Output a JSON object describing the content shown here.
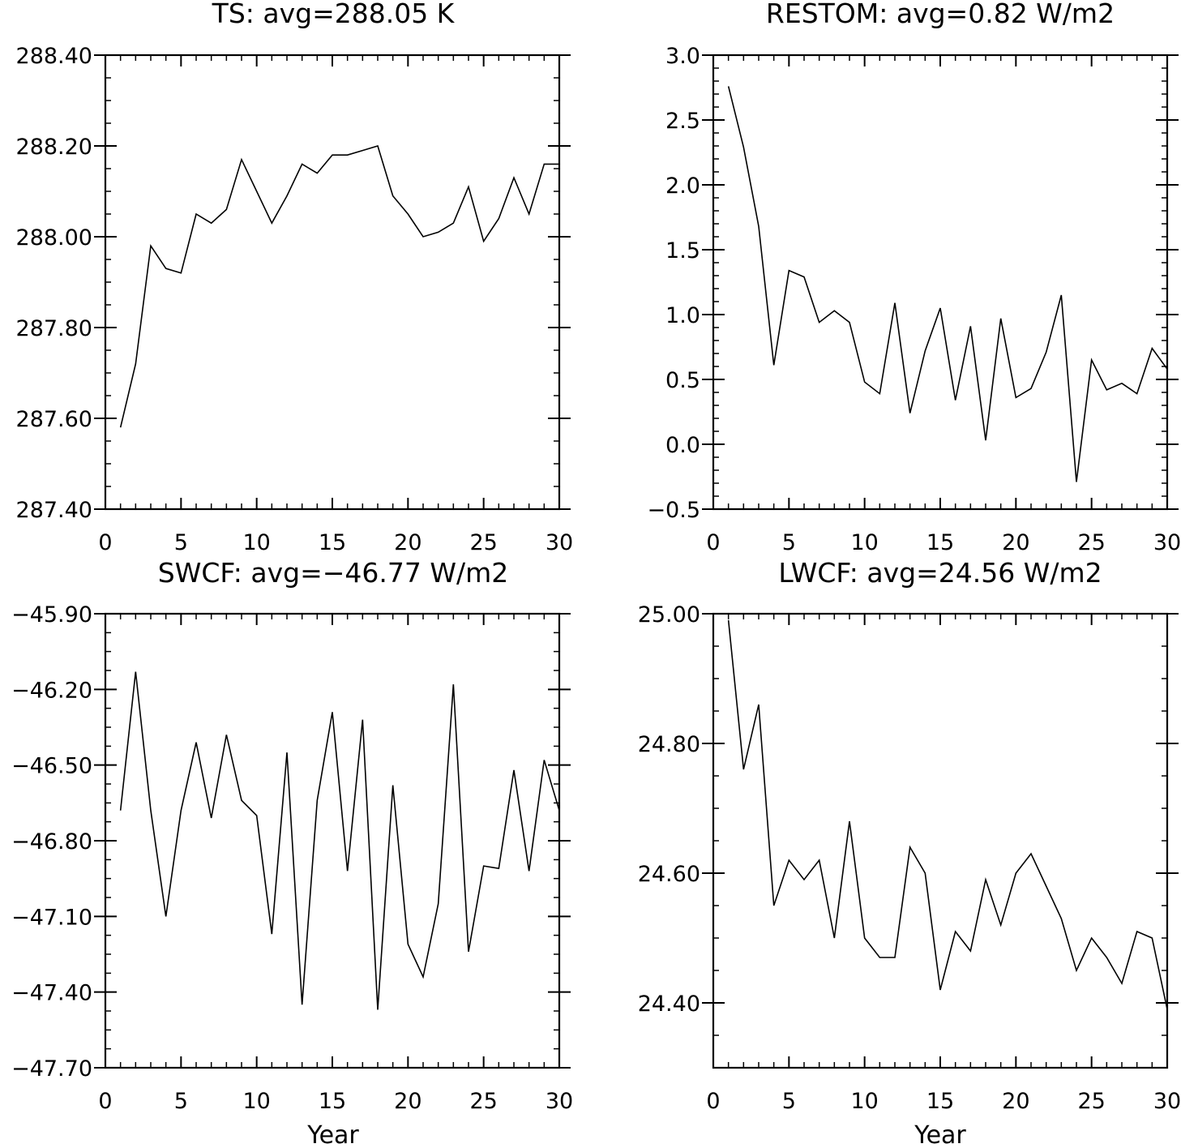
{
  "chart_data": [
    {
      "type": "line",
      "title": "TS: avg=288.05 K",
      "xlabel": "",
      "ylabel": "",
      "xlim": [
        0,
        30
      ],
      "ylim": [
        287.4,
        288.4
      ],
      "x_ticks": [
        "0",
        "5",
        "10",
        "15",
        "20",
        "25",
        "30"
      ],
      "y_ticks": [
        "287.40",
        "287.60",
        "287.80",
        "288.00",
        "288.20",
        "288.40"
      ],
      "grid": false,
      "series": [
        {
          "x": [
            1,
            2,
            3,
            4,
            5,
            6,
            7,
            8,
            9,
            10,
            11,
            12,
            13,
            14,
            15,
            16,
            17,
            18,
            19,
            20,
            21,
            22,
            23,
            24,
            25,
            26,
            27,
            28,
            29,
            30
          ],
          "values": [
            287.58,
            287.72,
            287.98,
            287.93,
            287.92,
            288.05,
            288.03,
            288.06,
            288.17,
            288.1,
            288.03,
            288.09,
            288.16,
            288.14,
            288.18,
            288.18,
            288.19,
            288.2,
            288.09,
            288.05,
            288.0,
            288.01,
            288.03,
            288.11,
            287.99,
            288.04,
            288.13,
            288.05,
            288.16,
            288.16
          ]
        }
      ]
    },
    {
      "type": "line",
      "title": "RESTOM: avg=0.82 W/m2",
      "xlabel": "",
      "ylabel": "",
      "xlim": [
        0,
        30
      ],
      "ylim": [
        -0.5,
        3.0
      ],
      "x_ticks": [
        "0",
        "5",
        "10",
        "15",
        "20",
        "25",
        "30"
      ],
      "y_ticks": [
        "−0.5",
        "0.0",
        "0.5",
        "1.0",
        "1.5",
        "2.0",
        "2.5",
        "3.0"
      ],
      "grid": false,
      "series": [
        {
          "x": [
            1,
            2,
            3,
            4,
            5,
            6,
            7,
            8,
            9,
            10,
            11,
            12,
            13,
            14,
            15,
            16,
            17,
            18,
            19,
            20,
            21,
            22,
            23,
            24,
            25,
            26,
            27,
            28,
            29,
            30
          ],
          "values": [
            2.76,
            2.29,
            1.68,
            0.61,
            1.34,
            1.29,
            0.94,
            1.03,
            0.94,
            0.48,
            0.39,
            1.09,
            0.24,
            0.72,
            1.05,
            0.34,
            0.91,
            0.03,
            0.97,
            0.36,
            0.43,
            0.71,
            1.15,
            -0.29,
            0.65,
            0.42,
            0.47,
            0.39,
            0.74,
            0.58
          ]
        }
      ]
    },
    {
      "type": "line",
      "title": "SWCF: avg=−46.77 W/m2",
      "xlabel": "Year",
      "ylabel": "",
      "xlim": [
        0,
        30
      ],
      "ylim": [
        -47.7,
        -45.9
      ],
      "x_ticks": [
        "0",
        "5",
        "10",
        "15",
        "20",
        "25",
        "30"
      ],
      "y_ticks": [
        "−47.70",
        "−47.40",
        "−47.10",
        "−46.80",
        "−46.50",
        "−46.20",
        "−45.90"
      ],
      "grid": false,
      "series": [
        {
          "x": [
            1,
            2,
            3,
            4,
            5,
            6,
            7,
            8,
            9,
            10,
            11,
            12,
            13,
            14,
            15,
            16,
            17,
            18,
            19,
            20,
            21,
            22,
            23,
            24,
            25,
            26,
            27,
            28,
            29,
            30
          ],
          "values": [
            -46.68,
            -46.13,
            -46.68,
            -47.1,
            -46.68,
            -46.41,
            -46.71,
            -46.38,
            -46.64,
            -46.7,
            -47.17,
            -46.45,
            -47.45,
            -46.64,
            -46.29,
            -46.92,
            -46.32,
            -47.47,
            -46.58,
            -47.21,
            -47.34,
            -47.05,
            -46.18,
            -47.24,
            -46.9,
            -46.91,
            -46.52,
            -46.92,
            -46.48,
            -46.68
          ]
        }
      ]
    },
    {
      "type": "line",
      "title": "LWCF: avg=24.56 W/m2",
      "xlabel": "Year",
      "ylabel": "",
      "xlim": [
        0,
        30
      ],
      "ylim": [
        24.3,
        25.0
      ],
      "x_ticks": [
        "0",
        "5",
        "10",
        "15",
        "20",
        "25",
        "30"
      ],
      "y_ticks": [
        "24.40",
        "24.60",
        "24.80",
        "25.00"
      ],
      "grid": false,
      "series": [
        {
          "x": [
            1,
            2,
            3,
            4,
            5,
            6,
            7,
            8,
            9,
            10,
            11,
            12,
            13,
            14,
            15,
            16,
            17,
            18,
            19,
            20,
            21,
            22,
            23,
            24,
            25,
            26,
            27,
            28,
            29,
            30
          ],
          "values": [
            24.99,
            24.76,
            24.86,
            24.55,
            24.62,
            24.59,
            24.62,
            24.5,
            24.68,
            24.5,
            24.47,
            24.47,
            24.64,
            24.6,
            24.42,
            24.51,
            24.48,
            24.59,
            24.52,
            24.6,
            24.63,
            24.58,
            24.53,
            24.45,
            24.5,
            24.47,
            24.43,
            24.51,
            24.5,
            24.39
          ]
        }
      ]
    }
  ]
}
